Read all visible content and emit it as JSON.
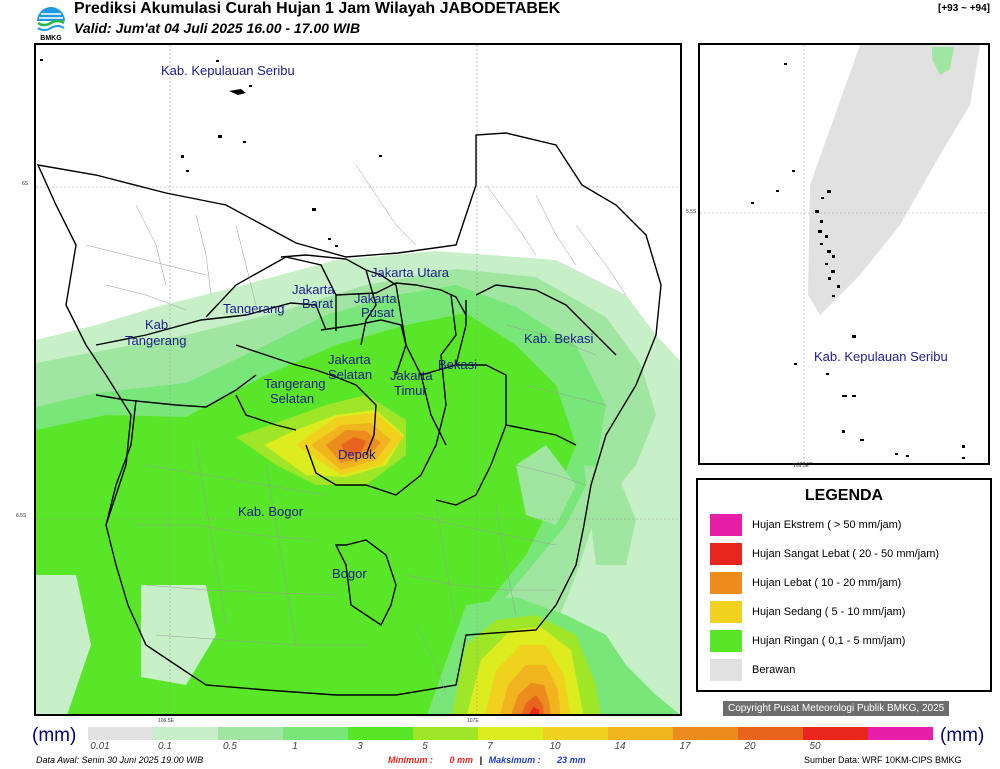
{
  "header": {
    "title": "Prediksi Akumulasi Curah Hujan 1 Jam Wilayah JABODETABEK",
    "valid": "Valid: Jum'at 04 Juli 2025 16.00 - 17.00 WIB",
    "code": "[+93 ~ +94]",
    "logo_text": "BMKG"
  },
  "map_labels": {
    "kepulauan_seribu": "Kab. Kepulauan Seribu",
    "jakarta_utara": "Jakarta Utara",
    "jakarta_barat_1": "Jakarta",
    "jakarta_barat_2": "Barat",
    "jakarta_pusat_1": "Jakarta",
    "jakarta_pusat_2": "Pusat",
    "tangerang": "Tangerang",
    "kab_tangerang_1": "Kab.",
    "kab_tangerang_2": "Tangerang",
    "jakarta_selatan_1": "Jakarta",
    "jakarta_selatan_2": "Selatan",
    "jakarta_timur_1": "Jakarta",
    "jakarta_timur_2": "Timur",
    "bekasi": "Bekasi",
    "kab_bekasi": "Kab. Bekasi",
    "tangerang_selatan_1": "Tangerang",
    "tangerang_selatan_2": "Selatan",
    "depok": "Depok",
    "kab_bogor": "Kab. Bogor",
    "bogor": "Bogor"
  },
  "coords": {
    "lat_6s": "6S",
    "lat_65s": "6.5S",
    "lon_1065e": "106.5E",
    "lon_107e": "107E",
    "inset_lat": "5.5S",
    "inset_lon": "106.5E"
  },
  "inset": {
    "label": "Kab. Kepulauan Seribu"
  },
  "legend": {
    "title": "LEGENDA",
    "items": [
      {
        "label": "Hujan Ekstrem ( > 50 mm/jam)",
        "color": "#e61ea8"
      },
      {
        "label": "Hujan Sangat Lebat ( 20 - 50 mm/jam)",
        "color": "#e8261e"
      },
      {
        "label": "Hujan Lebat ( 10 - 20 mm/jam)",
        "color": "#ec8c1e"
      },
      {
        "label": "Hujan Sedang ( 5 - 10 mm/jam)",
        "color": "#f0d21e"
      },
      {
        "label": "Hujan Ringan ( 0,1 - 5 mm/jam)",
        "color": "#5ae628"
      },
      {
        "label": "Berawan",
        "color": "#e1e1e1"
      }
    ]
  },
  "copyright": "Copyright Pusat Meteorologi Publik BMKG, 2025",
  "colorbar": {
    "unit_left": "(mm)",
    "unit_right": "(mm)",
    "colors": [
      "#e1e1e1",
      "#c8f0c8",
      "#a0e6a0",
      "#78e678",
      "#5ae628",
      "#a0e628",
      "#dcec1e",
      "#f0d21e",
      "#f0b41e",
      "#ec8c1e",
      "#e8641e",
      "#e8261e",
      "#e61ea8"
    ],
    "ticks": [
      "0.01",
      "0.1",
      "0.5",
      "1",
      "3",
      "5",
      "7",
      "10",
      "14",
      "17",
      "20",
      "50"
    ]
  },
  "footer": {
    "data_awal": "Data Awal: Senin 30 Juni 2025 19.00 WIB",
    "minimum_label": "Minimum :",
    "minimum_value": "0 mm",
    "maximum_label": "Maksimum :",
    "maximum_value": "23 mm",
    "sumber": "Sumber Data: WRF 10KM-CIPS BMKG"
  },
  "colors": {
    "cloud": "#e1e1e1",
    "light": "#5ae628",
    "moderate": "#f0d21e",
    "heavy": "#ec8c1e",
    "very_heavy": "#e8261e",
    "label_text": "#1d1d8a",
    "min_value": "#e8261e",
    "max_value": "#1e3cc8"
  }
}
